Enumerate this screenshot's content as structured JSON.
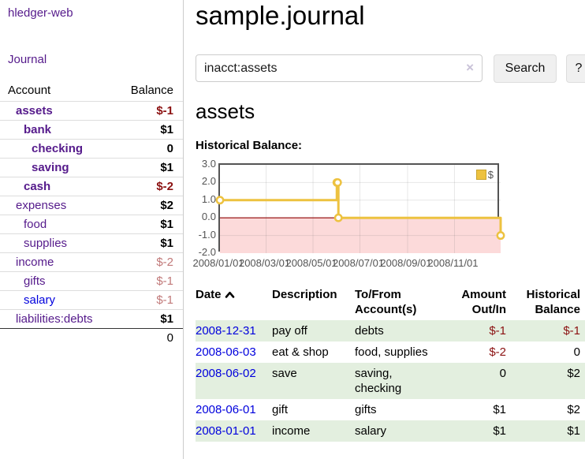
{
  "colors": {
    "link_purple": "#551a8b",
    "link_blue": "#0000dd",
    "negative": "#8b1111",
    "negative_faded": "#c17979",
    "row_stripe_green": "#e3efdf",
    "chart_line": "#edc240"
  },
  "sidebar": {
    "brand": "hledger-web",
    "journal_link": "Journal",
    "accounts": {
      "col_account": "Account",
      "col_balance": "Balance",
      "rows": [
        {
          "label": "assets",
          "balance": "$-1",
          "depth": 1,
          "emphasis": true,
          "negative": true
        },
        {
          "label": "bank",
          "balance": "$1",
          "depth": 2,
          "emphasis": true
        },
        {
          "label": "checking",
          "balance": "0",
          "depth": 3,
          "emphasis": true
        },
        {
          "label": "saving",
          "balance": "$1",
          "depth": 3,
          "emphasis": true
        },
        {
          "label": "cash",
          "balance": "$-2",
          "depth": 2,
          "emphasis": true,
          "negative": true
        },
        {
          "label": "expenses",
          "balance": "$2",
          "depth": 1
        },
        {
          "label": "food",
          "balance": "$1",
          "depth": 2
        },
        {
          "label": "supplies",
          "balance": "$1",
          "depth": 2
        },
        {
          "label": "income",
          "balance": "$-2",
          "depth": 1,
          "faded": true
        },
        {
          "label": "gifts",
          "balance": "$-1",
          "depth": 2,
          "faded": true
        },
        {
          "label": "salary",
          "balance": "$-1",
          "depth": 2,
          "faded": true,
          "blue": true
        },
        {
          "label": "liabilities:debts",
          "balance": "$1",
          "depth": 1
        }
      ],
      "total": "0"
    }
  },
  "main": {
    "title": "sample.journal",
    "search": {
      "value": "inacct:assets",
      "clear_icon": "×",
      "button_label": "Search",
      "help_label": "?"
    },
    "account_heading": "assets",
    "chart_title": "Historical Balance:",
    "register": {
      "headers": {
        "date": "Date",
        "description": "Description",
        "accounts": "To/From Account(s)",
        "amount": "Amount Out/In",
        "balance": "Historical Balance"
      },
      "rows": [
        {
          "date": "2008-12-31",
          "description": "pay off",
          "accounts": "debts",
          "amount": "$-1",
          "balance": "$-1",
          "amount_negative": true,
          "balance_negative": true
        },
        {
          "date": "2008-06-03",
          "description": "eat & shop",
          "accounts": "food, supplies",
          "amount": "$-2",
          "balance": "0",
          "amount_negative": true
        },
        {
          "date": "2008-06-02",
          "description": "save",
          "accounts": "saving, checking",
          "amount": "0",
          "balance": "$2"
        },
        {
          "date": "2008-06-01",
          "description": "gift",
          "accounts": "gifts",
          "amount": "$1",
          "balance": "$2"
        },
        {
          "date": "2008-01-01",
          "description": "income",
          "accounts": "salary",
          "amount": "$1",
          "balance": "$1"
        }
      ]
    }
  },
  "chart_data": {
    "type": "line",
    "title": "Historical Balance:",
    "step": true,
    "series": [
      {
        "name": "$",
        "color": "#edc240",
        "x": [
          "2008-01-01",
          "2008-06-01",
          "2008-06-02",
          "2008-06-03",
          "2008-12-31"
        ],
        "values": [
          1,
          2,
          2,
          0,
          -1
        ]
      }
    ],
    "x_range": [
      "2008-01-01",
      "2008-12-31"
    ],
    "ylim": [
      -2,
      3
    ],
    "yticks": [
      3,
      2,
      1,
      0,
      -1,
      -2
    ],
    "xticks": [
      "2008/01/01",
      "2008/03/01",
      "2008/05/01",
      "2008/07/01",
      "2008/09/01",
      "2008/11/01"
    ],
    "grid": true,
    "legend_position": "top-right",
    "negative_region_color": "#fcdada",
    "zero_line_color": "#8b0000"
  }
}
